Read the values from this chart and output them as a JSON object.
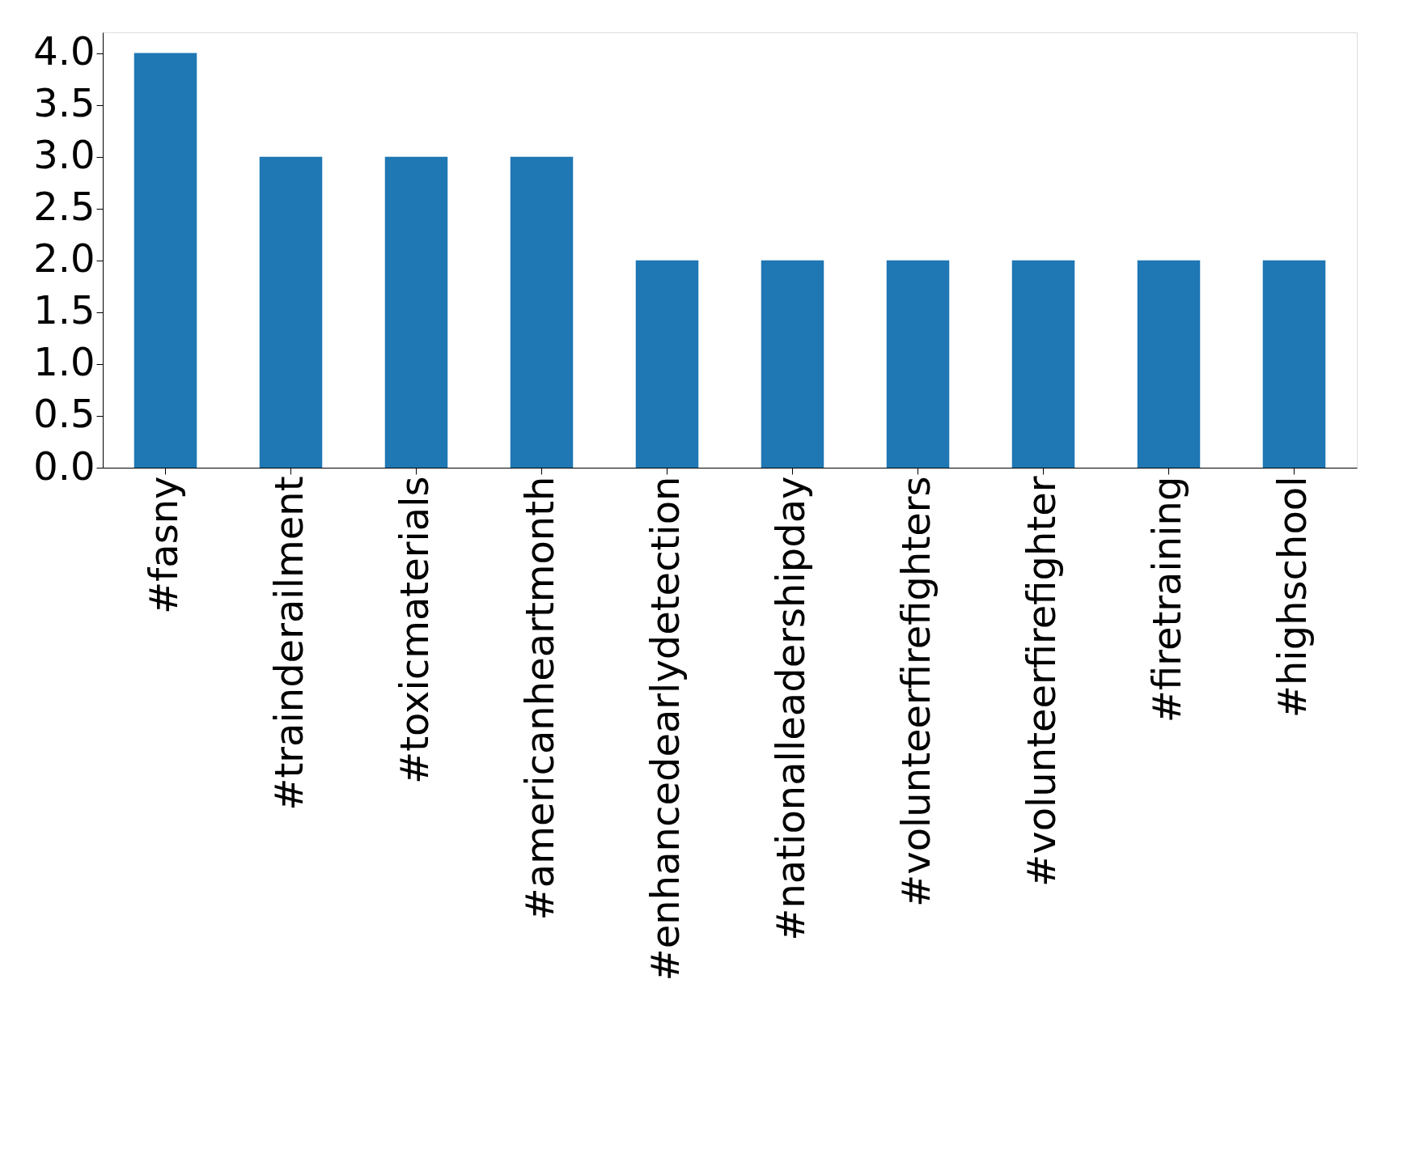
{
  "chart_data": {
    "type": "bar",
    "categories": [
      "#fasny",
      "#trainderailment",
      "#toxicmaterials",
      "#americanheartmonth",
      "#enhancedearlydetection",
      "#nationalleadershipday",
      "#volunteerfirefighters",
      "#volunteerfirefighter",
      "#firetraining",
      "#highschool"
    ],
    "values": [
      4,
      3,
      3,
      3,
      2,
      2,
      2,
      2,
      2,
      2
    ],
    "color": "#1f77b4",
    "ylim": [
      0,
      4.2
    ],
    "yticks": [
      {
        "value": 0,
        "label": "0.0"
      },
      {
        "value": 0.5,
        "label": "0.5"
      },
      {
        "value": 1,
        "label": "1.0"
      },
      {
        "value": 1.5,
        "label": "1.5"
      },
      {
        "value": 2,
        "label": "2.0"
      },
      {
        "value": 2.5,
        "label": "2.5"
      },
      {
        "value": 3,
        "label": "3.0"
      },
      {
        "value": 3.5,
        "label": "3.5"
      },
      {
        "value": 4,
        "label": "4.0"
      }
    ],
    "grid": false
  }
}
